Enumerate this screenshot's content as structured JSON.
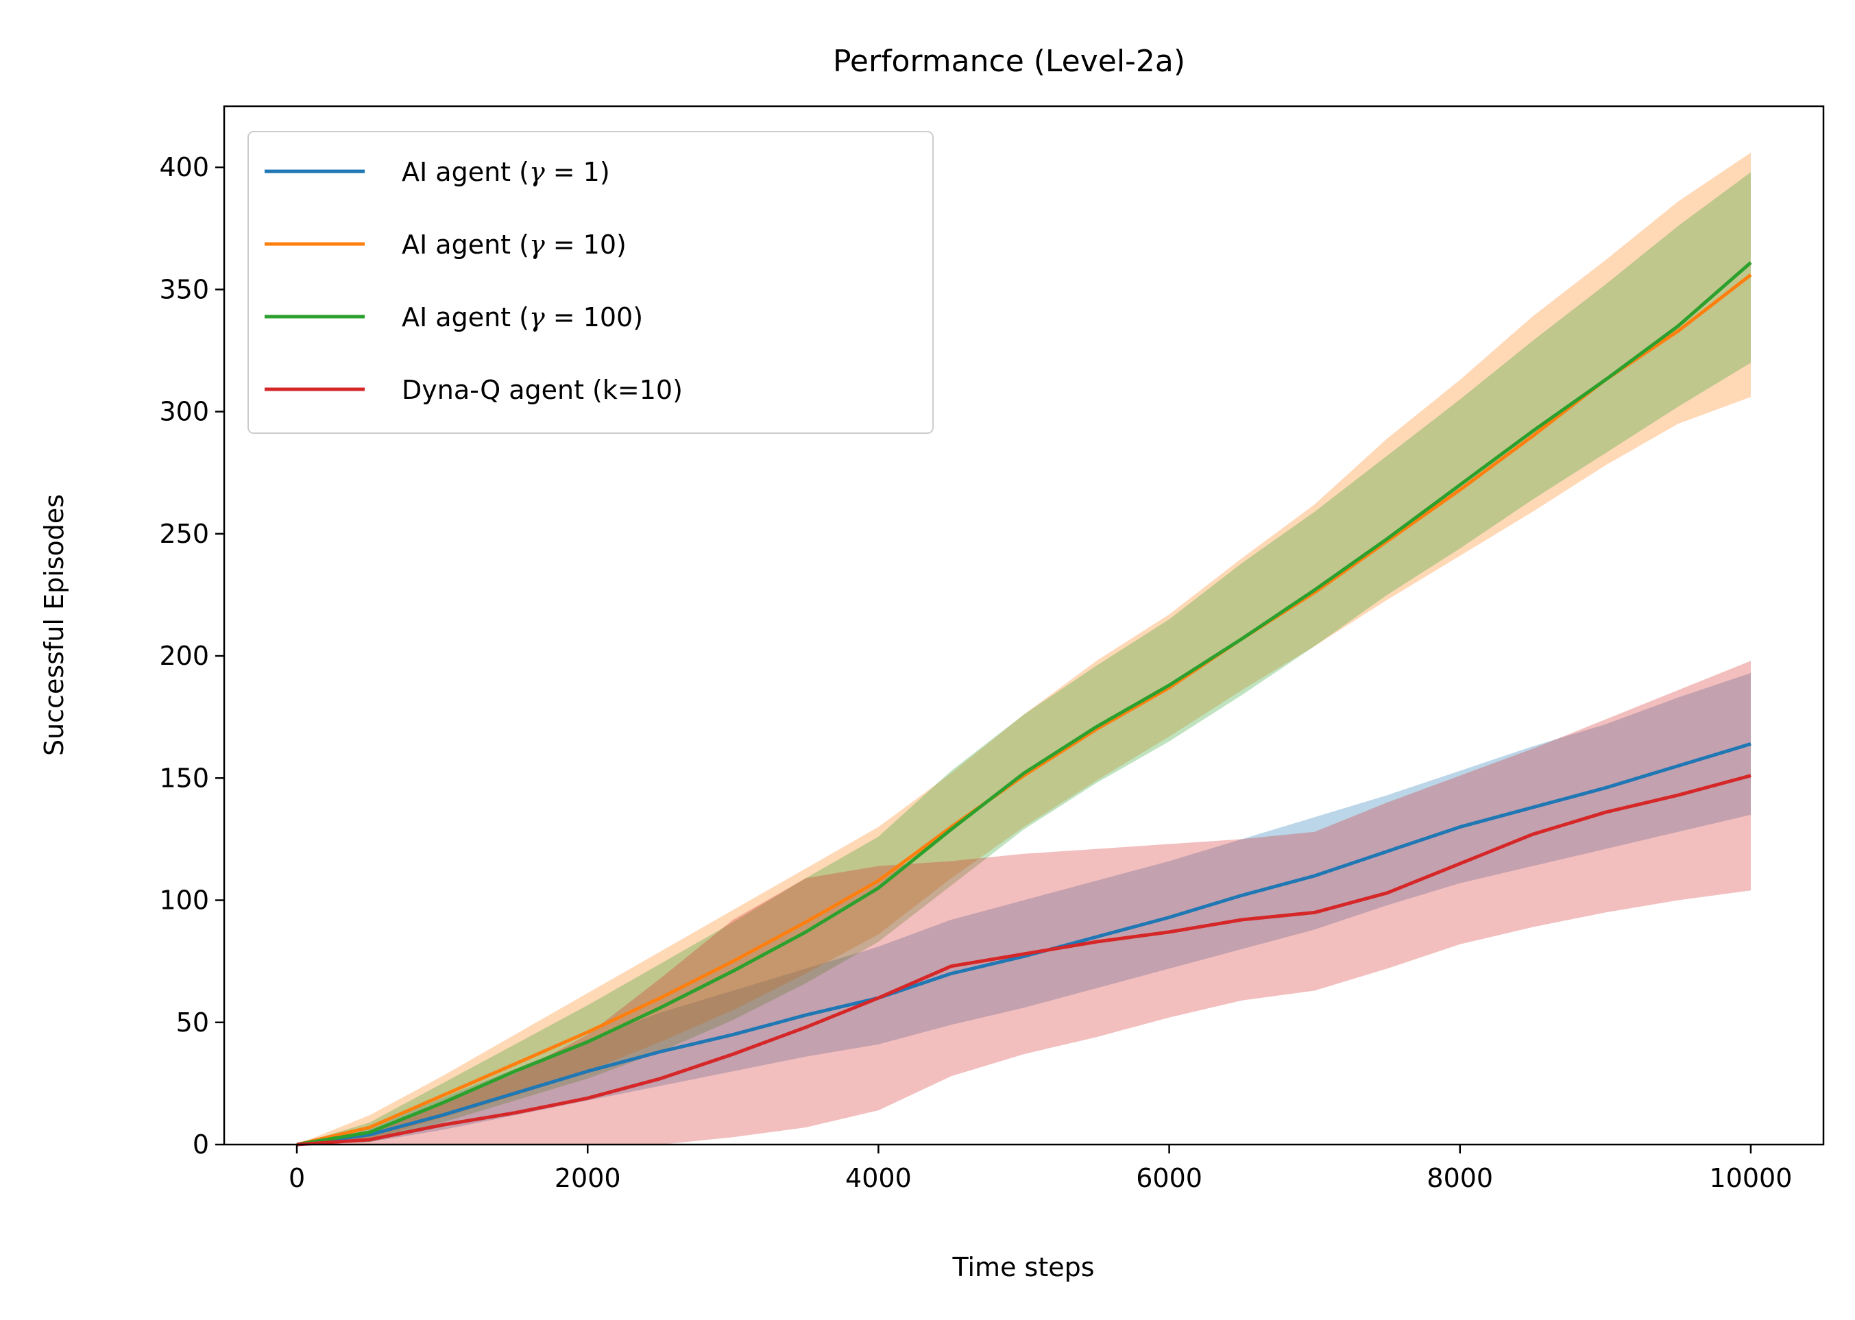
{
  "chart_data": {
    "type": "line",
    "title": "Performance (Level-2a)",
    "xlabel": "Time steps",
    "ylabel": "Successful Episodes",
    "xlim": [
      -500,
      10500
    ],
    "ylim": [
      0,
      425
    ],
    "xticks": [
      0,
      2000,
      4000,
      6000,
      8000,
      10000
    ],
    "yticks": [
      0,
      50,
      100,
      150,
      200,
      250,
      300,
      350,
      400
    ],
    "grid": false,
    "legend_position": "upper-left",
    "x": [
      0,
      500,
      1000,
      1500,
      2000,
      2500,
      3000,
      3500,
      4000,
      4500,
      5000,
      5500,
      6000,
      6500,
      7000,
      7500,
      8000,
      8500,
      9000,
      9500,
      10000
    ],
    "series": [
      {
        "name": "AI agent (γ = 1)",
        "legend": {
          "prefix": "AI agent (",
          "symbol": "γ",
          "suffix": " = 1)"
        },
        "color": "#1f77b4",
        "mean": [
          0,
          4,
          12,
          21,
          30,
          38,
          45,
          53,
          60,
          70,
          77,
          85,
          93,
          102,
          110,
          120,
          130,
          138,
          146,
          155,
          164
        ],
        "upper": [
          0,
          7,
          19,
          31,
          43,
          54,
          63,
          72,
          81,
          92,
          100,
          108,
          116,
          125,
          134,
          143,
          153,
          163,
          172,
          183,
          193
        ],
        "lower": [
          0,
          1,
          6,
          12,
          18,
          24,
          30,
          36,
          41,
          49,
          56,
          64,
          72,
          80,
          88,
          98,
          107,
          114,
          121,
          128,
          135
        ]
      },
      {
        "name": "AI agent (γ = 10)",
        "legend": {
          "prefix": "AI agent (",
          "symbol": "γ",
          "suffix": " = 10)"
        },
        "color": "#ff7f0e",
        "mean": [
          0,
          7,
          20,
          33,
          46,
          60,
          75,
          91,
          108,
          130,
          151,
          170,
          187,
          207,
          226,
          247,
          268,
          290,
          313,
          333,
          356
        ],
        "upper": [
          0,
          12,
          28,
          45,
          62,
          79,
          96,
          113,
          130,
          152,
          176,
          198,
          217,
          240,
          262,
          289,
          313,
          339,
          362,
          386,
          406
        ],
        "lower": [
          0,
          2,
          11,
          20,
          30,
          42,
          55,
          70,
          86,
          109,
          130,
          149,
          167,
          186,
          204,
          223,
          241,
          259,
          278,
          295,
          306
        ]
      },
      {
        "name": "AI agent (γ = 100)",
        "legend": {
          "prefix": "AI agent (",
          "symbol": "γ",
          "suffix": " = 100)"
        },
        "color": "#2ca02c",
        "mean": [
          0,
          5,
          17,
          30,
          42,
          56,
          71,
          87,
          105,
          129,
          152,
          171,
          188,
          207,
          227,
          248,
          270,
          292,
          313,
          335,
          361
        ],
        "upper": [
          0,
          9,
          25,
          41,
          57,
          74,
          91,
          109,
          126,
          153,
          176,
          196,
          215,
          238,
          259,
          282,
          305,
          329,
          352,
          376,
          398
        ],
        "lower": [
          0,
          1,
          9,
          18,
          27,
          38,
          51,
          66,
          83,
          106,
          129,
          148,
          165,
          184,
          204,
          225,
          244,
          264,
          283,
          302,
          320
        ]
      },
      {
        "name": "Dyna-Q agent (k=10)",
        "legend": {
          "prefix": "Dyna-Q agent (k=10)",
          "symbol": "",
          "suffix": ""
        },
        "color": "#d62728",
        "mean": [
          0,
          2,
          8,
          13,
          19,
          27,
          37,
          48,
          60,
          73,
          78,
          83,
          87,
          92,
          95,
          103,
          115,
          127,
          136,
          143,
          151
        ],
        "upper": [
          0,
          4,
          17,
          29,
          45,
          68,
          92,
          109,
          114,
          116,
          119,
          121,
          123,
          125,
          128,
          140,
          151,
          162,
          174,
          186,
          198
        ],
        "lower": [
          0,
          0,
          0,
          0,
          0,
          0,
          3,
          7,
          14,
          28,
          37,
          44,
          52,
          59,
          63,
          72,
          82,
          89,
          95,
          100,
          104
        ]
      }
    ]
  }
}
